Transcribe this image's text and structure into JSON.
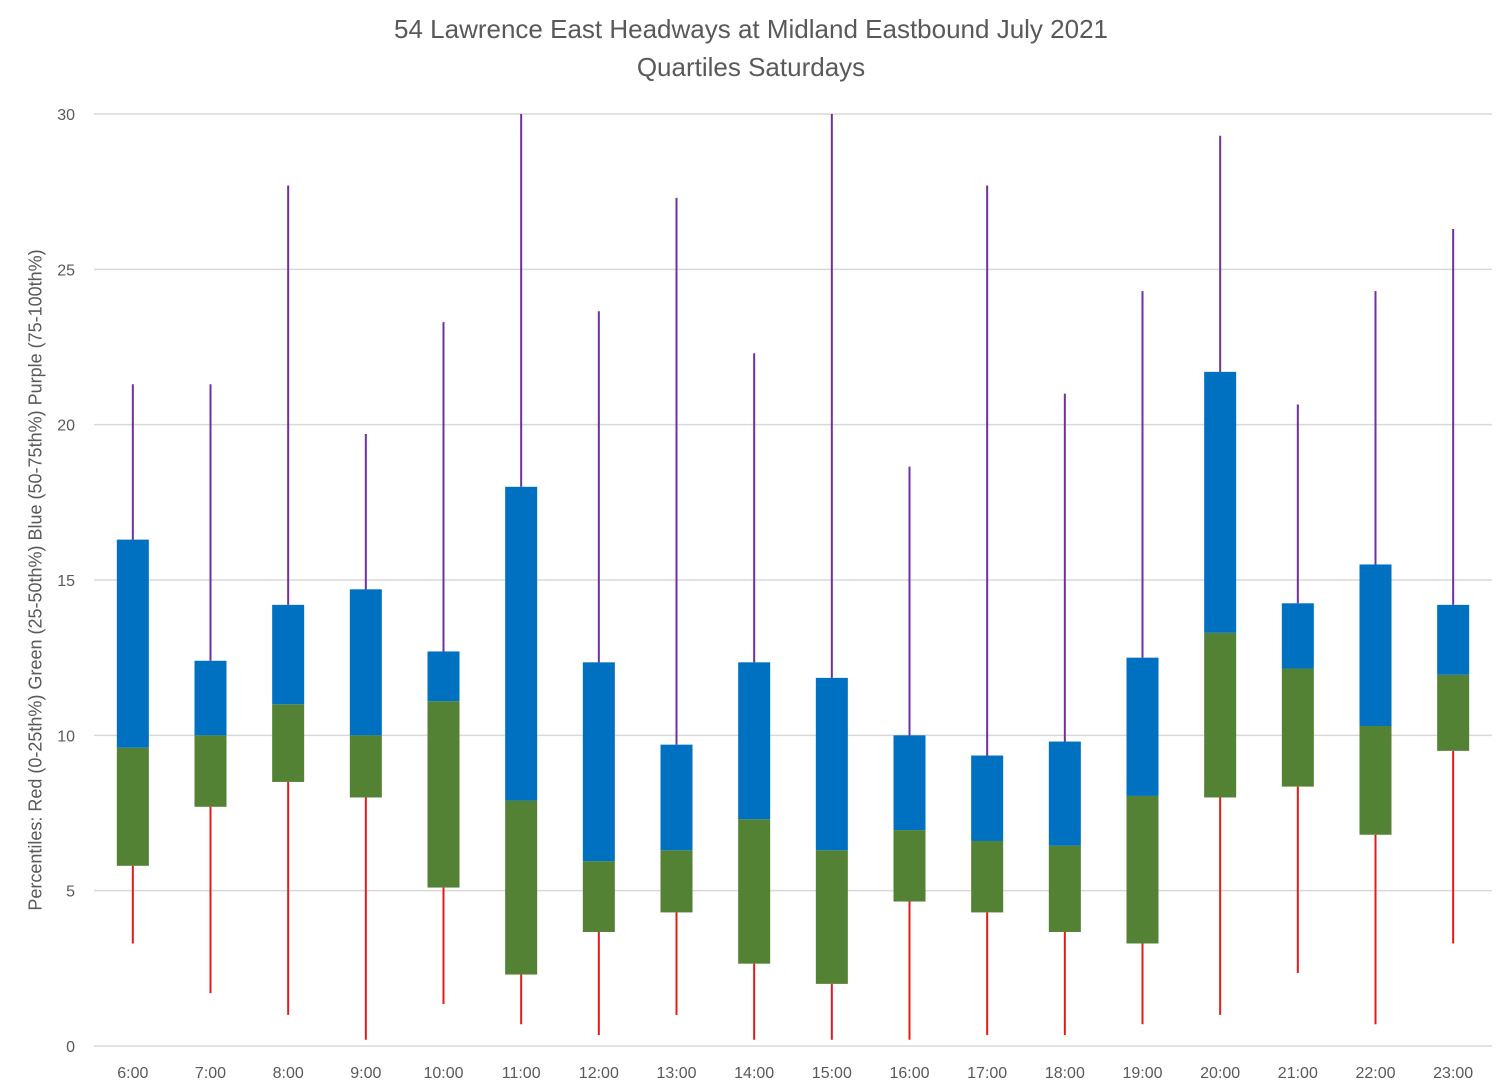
{
  "chart_data": {
    "type": "boxplot",
    "title": "54 Lawrence East Headways at Midland Eastbound July 2021",
    "subtitle": "Quartiles Saturdays",
    "xlabel": "",
    "ylabel": "Percentiles:  Red (0-25th%)  Green (25-50th%)  Blue (50-75th%)  Purple (75-100th%)",
    "ylim": [
      0,
      30
    ],
    "yticks": [
      "0",
      "5",
      "10",
      "15",
      "20",
      "25",
      "30"
    ],
    "grid": true,
    "categories": [
      "6:00",
      "7:00",
      "8:00",
      "9:00",
      "10:00",
      "11:00",
      "12:00",
      "13:00",
      "14:00",
      "15:00",
      "16:00",
      "17:00",
      "18:00",
      "19:00",
      "20:00",
      "21:00",
      "22:00",
      "23:00"
    ],
    "series": [
      {
        "name": "min",
        "values": [
          3.3,
          1.7,
          1.0,
          0.2,
          1.35,
          0.7,
          0.35,
          1.0,
          0.2,
          0.2,
          0.2,
          0.35,
          0.35,
          0.7,
          1.0,
          2.35,
          0.7,
          3.3
        ]
      },
      {
        "name": "q1",
        "values": [
          5.8,
          7.7,
          8.5,
          8.0,
          5.1,
          2.3,
          3.67,
          4.3,
          2.65,
          2.0,
          4.65,
          4.3,
          3.67,
          3.3,
          8.0,
          8.35,
          6.8,
          9.5
        ]
      },
      {
        "name": "median",
        "values": [
          9.6,
          10.0,
          11.0,
          10.0,
          11.1,
          7.9,
          5.95,
          6.3,
          7.3,
          6.3,
          6.95,
          6.6,
          6.45,
          8.05,
          13.3,
          12.15,
          10.3,
          11.95
        ]
      },
      {
        "name": "q3",
        "values": [
          16.3,
          12.4,
          14.2,
          14.7,
          12.7,
          18.0,
          12.35,
          9.7,
          12.35,
          11.85,
          10.0,
          9.35,
          9.8,
          12.5,
          21.7,
          14.25,
          15.5,
          14.2
        ]
      },
      {
        "name": "max",
        "values": [
          21.3,
          21.3,
          27.7,
          19.7,
          23.3,
          30.0,
          23.65,
          27.3,
          22.3,
          30.0,
          18.65,
          27.7,
          21.0,
          24.3,
          29.3,
          20.65,
          24.3,
          26.3
        ]
      }
    ],
    "colors": {
      "lower_whisker": "#E31B1B",
      "lower_box": "#548235",
      "upper_box": "#0070C0",
      "upper_whisker": "#7030A0",
      "grid": "#D9D9D9",
      "text": "#595959"
    }
  }
}
